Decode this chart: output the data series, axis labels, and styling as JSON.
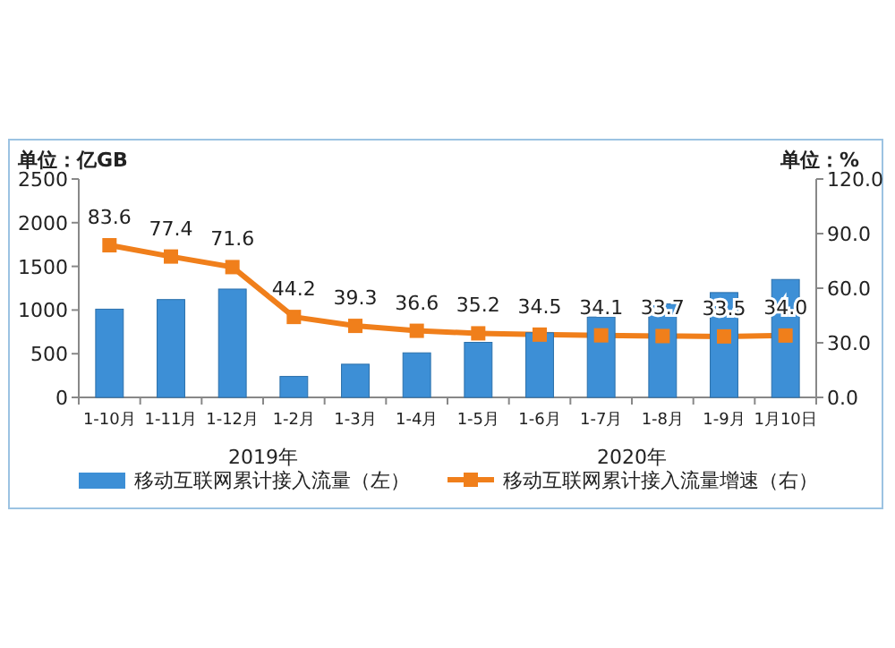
{
  "chart_data": {
    "type": "bar",
    "ylabel": "单位：亿GB",
    "y2label": "单位：%",
    "categories": [
      "1-10月",
      "1-11月",
      "1-12月",
      "1-2月",
      "1-3月",
      "1-4月",
      "1-5月",
      "1-6月",
      "1-7月",
      "1-8月",
      "1-9月",
      "1月10日"
    ],
    "series": [
      {
        "name": "移动互联网累计接入流量（左）",
        "color": "#3d8fd6",
        "values": [
          1010,
          1120,
          1240,
          240,
          380,
          510,
          630,
          740,
          920,
          1070,
          1200,
          1350
        ]
      },
      {
        "name": "移动互联网累计接入流量增速（右）",
        "type": "line",
        "axis": "y2",
        "color": "#f07f1b",
        "marker": "square",
        "values": [
          83.6,
          77.4,
          71.6,
          44.2,
          39.3,
          36.6,
          35.2,
          34.5,
          34.1,
          33.7,
          33.5,
          34.0
        ],
        "value_labels": [
          "83.6",
          "77.4",
          "71.6",
          "44.2",
          "39.3",
          "36.6",
          "35.2",
          "34.5",
          "34.1",
          "33.7",
          "33.5",
          "34.0"
        ]
      }
    ],
    "ylim": [
      0,
      2500
    ],
    "yticks": [
      0,
      500,
      1000,
      1500,
      2000,
      2500
    ],
    "y2lim": [
      0,
      120
    ],
    "y2ticks": [
      {
        "value": 0,
        "label": "0.0"
      },
      {
        "value": 30,
        "label": "30.0"
      },
      {
        "value": 60,
        "label": "60.0"
      },
      {
        "value": 90,
        "label": "90.0"
      },
      {
        "value": 120,
        "label": "120.0"
      }
    ],
    "annotations": [
      "2019年",
      "2020年"
    ],
    "legend": "bottom",
    "grid": false
  }
}
